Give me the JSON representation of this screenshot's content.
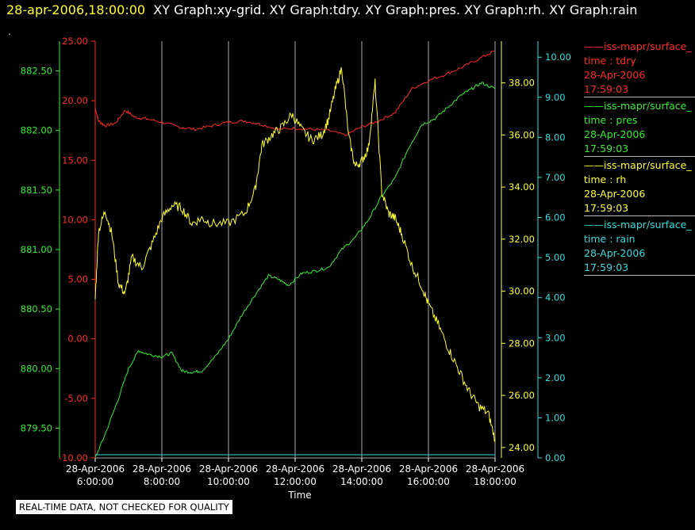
{
  "header": {
    "timestamp": "28-apr-2006,18:00:00",
    "graphs": "XY Graph:xy-grid.  XY Graph:tdry.  XY Graph:pres.  XY Graph:rh.  XY Graph:rain",
    "dot": "."
  },
  "notice": "REAL-TIME DATA, NOT CHECKED FOR QUALITY",
  "colors": {
    "tdry": "#ff2a2a",
    "pres": "#33ee33",
    "rh": "#ffff33",
    "rain": "#33dddd",
    "grid": "#aaaaaa"
  },
  "legend": [
    {
      "source": "iss-mapr/surface_",
      "field": "time : tdry",
      "date": "28-Apr-2006",
      "time": "17:59:03",
      "color": "#ff2a2a"
    },
    {
      "source": "iss-mapr/surface_",
      "field": "time : pres",
      "date": "28-Apr-2006",
      "time": "17:59:03",
      "color": "#33ee33"
    },
    {
      "source": "iss-mapr/surface_",
      "field": "time : rh",
      "date": "28-Apr-2006",
      "time": "17:59:03",
      "color": "#ffff33"
    },
    {
      "source": "iss-mapr/surface_",
      "field": "time : rain",
      "date": "28-Apr-2006",
      "time": "17:59:03",
      "color": "#33dddd"
    }
  ],
  "chart_data": {
    "type": "line",
    "xlabel": "Time",
    "xlim": [
      6,
      18
    ],
    "x_ticks": [
      {
        "v": 6,
        "date": "28-Apr-2006",
        "time": "6:00:00"
      },
      {
        "v": 8,
        "date": "28-Apr-2006",
        "time": "8:00:00"
      },
      {
        "v": 10,
        "date": "28-Apr-2006",
        "time": "10:00:00"
      },
      {
        "v": 12,
        "date": "28-Apr-2006",
        "time": "12:00:00"
      },
      {
        "v": 14,
        "date": "28-Apr-2006",
        "time": "14:00:00"
      },
      {
        "v": 16,
        "date": "28-Apr-2006",
        "time": "16:00:00"
      },
      {
        "v": 18,
        "date": "28-Apr-2006",
        "time": "18:00:00"
      }
    ],
    "axes": {
      "tdry": {
        "ylim": [
          -10,
          25
        ],
        "ticks": [
          "25.00",
          "20.00",
          "15.00",
          "10.00",
          "5.00",
          "0.00",
          "-5.00",
          "-10.00"
        ]
      },
      "pres": {
        "ylim": [
          879.25,
          882.75
        ],
        "ticks": [
          "882.50",
          "882.00",
          "881.50",
          "881.00",
          "880.50",
          "880.00",
          "879.50"
        ]
      },
      "rh": {
        "ylim": [
          23.6,
          39.6
        ],
        "ticks": [
          "38.00",
          "36.00",
          "34.00",
          "32.00",
          "30.00",
          "28.00",
          "26.00",
          "24.00"
        ]
      },
      "rain": {
        "ylim": [
          0,
          10.4
        ],
        "ticks": [
          "10.00",
          "9.00",
          "8.00",
          "7.00",
          "6.00",
          "5.00",
          "4.00",
          "3.00",
          "2.00",
          "1.00",
          "0.00"
        ]
      }
    },
    "series": [
      {
        "key": "tdry",
        "x": [
          6,
          6.1,
          6.3,
          6.6,
          6.9,
          7.2,
          7.5,
          8,
          8.5,
          9,
          9.5,
          10,
          10.5,
          11,
          11.5,
          12,
          12.5,
          13,
          13.5,
          14,
          14.5,
          15,
          15.5,
          16,
          16.5,
          17,
          17.5,
          18
        ],
        "values": [
          19.4,
          18.3,
          17.9,
          18.1,
          19.2,
          18.6,
          18.5,
          18.2,
          17.8,
          17.6,
          17.9,
          18.2,
          18.3,
          18.0,
          17.6,
          17.7,
          17.6,
          17.5,
          17.1,
          17.8,
          18.3,
          19.0,
          21.0,
          21.7,
          22.2,
          22.8,
          23.5,
          24.2
        ]
      },
      {
        "key": "pres",
        "x": [
          6,
          6.3,
          6.7,
          7,
          7.3,
          7.6,
          8,
          8.3,
          8.6,
          8.9,
          9.2,
          9.6,
          10,
          10.4,
          10.8,
          11.2,
          11.5,
          11.8,
          12.2,
          12.6,
          13,
          13.4,
          13.8,
          14.2,
          14.6,
          15,
          15.4,
          15.8,
          16.2,
          16.6,
          17,
          17.3,
          17.6,
          18
        ],
        "values": [
          879.25,
          879.45,
          879.75,
          880.0,
          880.15,
          880.12,
          880.1,
          880.13,
          879.98,
          879.97,
          879.98,
          880.1,
          880.25,
          880.45,
          880.62,
          880.78,
          880.75,
          880.7,
          880.8,
          880.82,
          880.85,
          881.0,
          881.1,
          881.25,
          881.45,
          881.6,
          881.85,
          882.05,
          882.1,
          882.2,
          882.3,
          882.35,
          882.4,
          882.35
        ]
      },
      {
        "key": "rh",
        "x": [
          6,
          6.1,
          6.3,
          6.5,
          6.7,
          6.9,
          7.1,
          7.4,
          7.7,
          8,
          8.3,
          8.6,
          8.9,
          9.2,
          9.5,
          10,
          10.5,
          10.8,
          11,
          11.3,
          11.6,
          11.9,
          12.2,
          12.5,
          12.8,
          13,
          13.2,
          13.4,
          13.6,
          13.8,
          14,
          14.2,
          14.4,
          14.6,
          14.8,
          15,
          15.2,
          15.5,
          15.8,
          16,
          16.3,
          16.6,
          16.9,
          17.2,
          17.5,
          17.8,
          18
        ],
        "values": [
          29.7,
          32.3,
          33.1,
          32.2,
          30.3,
          29.9,
          31.3,
          30.9,
          31.8,
          32.8,
          33.3,
          33.2,
          32.6,
          32.8,
          32.6,
          32.6,
          33.0,
          33.9,
          35.6,
          36.0,
          36.3,
          36.8,
          36.2,
          35.8,
          36.0,
          36.6,
          37.7,
          38.6,
          36.0,
          34.8,
          35.0,
          35.5,
          38.0,
          33.8,
          33.0,
          32.8,
          32.2,
          31.0,
          30.2,
          29.5,
          28.7,
          27.8,
          27.0,
          26.2,
          25.6,
          25.3,
          24.3
        ]
      },
      {
        "key": "rain",
        "x": [
          6,
          18
        ],
        "values": [
          0,
          0
        ]
      }
    ]
  }
}
